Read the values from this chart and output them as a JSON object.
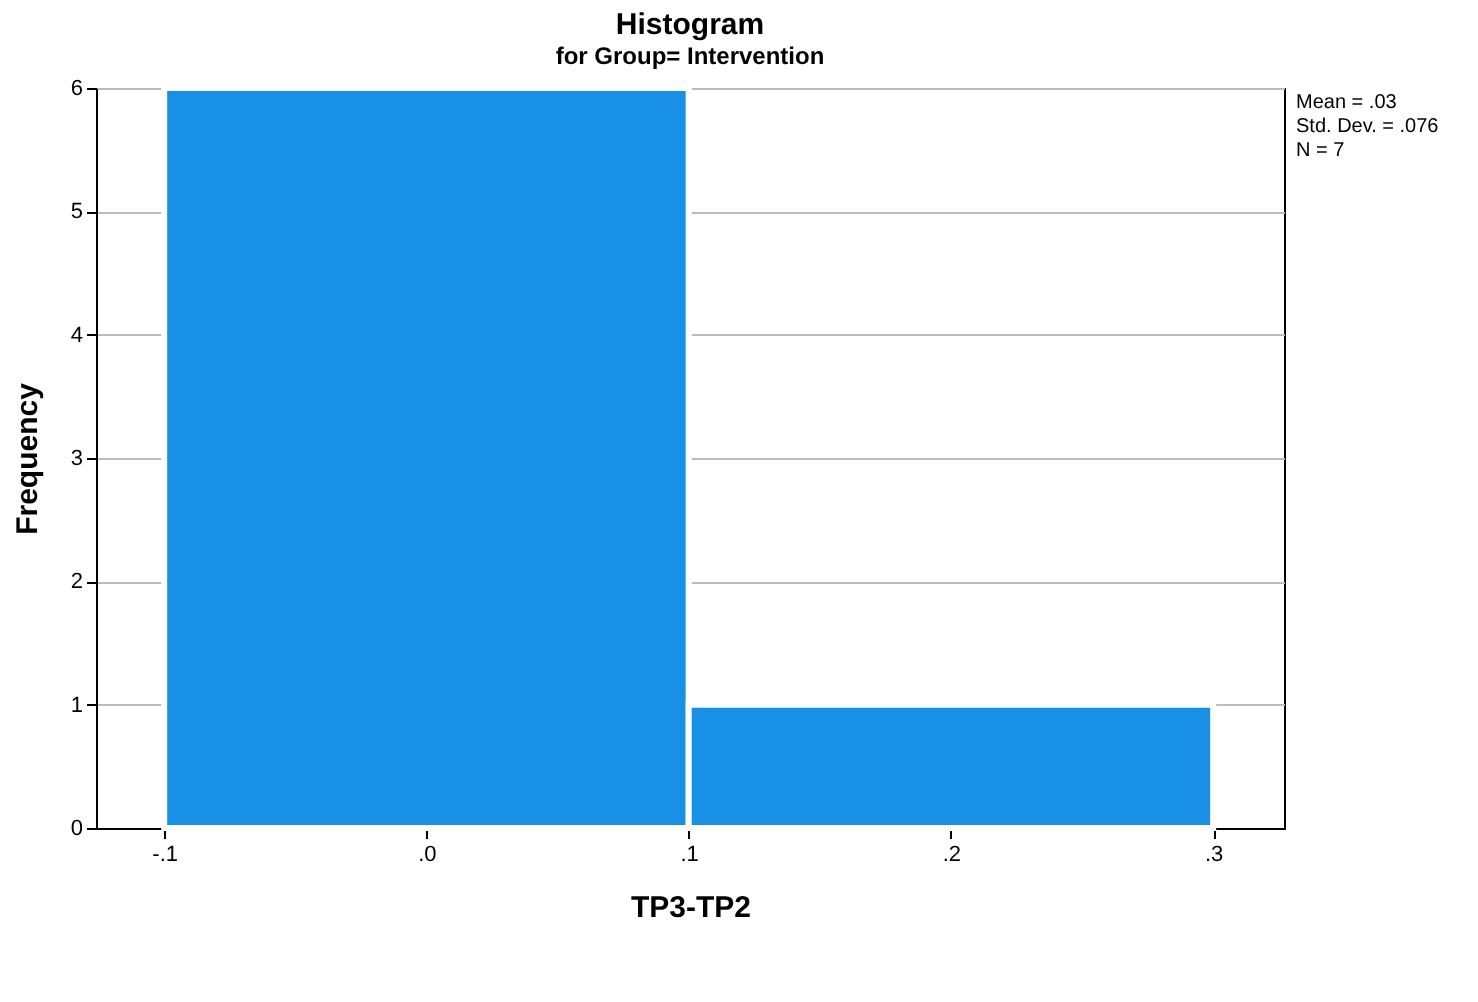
{
  "chart_data": {
    "type": "histogram",
    "title": "Histogram",
    "subtitle": "for Group= Intervention",
    "xlabel": "TP3-TP2",
    "ylabel": "Frequency",
    "bins": [
      -0.1,
      0.1,
      0.3
    ],
    "values": [
      6,
      1
    ],
    "color": "#1890e6",
    "xlim": [
      -0.126,
      0.327
    ],
    "xticks": [
      {
        "value": -0.1,
        "label": "-.1"
      },
      {
        "value": 0,
        "label": ".0"
      },
      {
        "value": 0.1,
        "label": ".1"
      },
      {
        "value": 0.2,
        "label": ".2"
      },
      {
        "value": 0.3,
        "label": ".3"
      }
    ],
    "ylim": [
      0,
      6
    ],
    "yticks": [
      0,
      1,
      2,
      3,
      4,
      5,
      6
    ],
    "grid": "y",
    "annotations": [
      "Mean = .03",
      "Std. Dev. = .076",
      "N = 7"
    ]
  }
}
